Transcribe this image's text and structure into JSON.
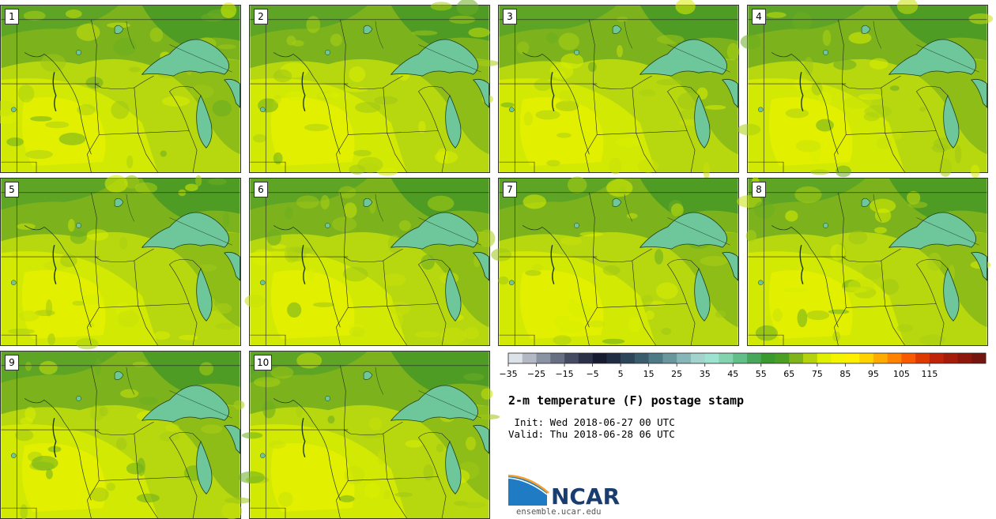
{
  "panels": [
    {
      "label": "1"
    },
    {
      "label": "2"
    },
    {
      "label": "3"
    },
    {
      "label": "4"
    },
    {
      "label": "5"
    },
    {
      "label": "6"
    },
    {
      "label": "7"
    },
    {
      "label": "8"
    },
    {
      "label": "9"
    },
    {
      "label": "10"
    }
  ],
  "title": "2-m temperature (F) postage stamp",
  "init": " Init: Wed 2018-06-27 00 UTC",
  "valid": "Valid: Thu 2018-06-28 06 UTC",
  "colorbar": {
    "ticks": [
      "−35",
      "−25",
      "−15",
      "−5",
      "5",
      "15",
      "25",
      "35",
      "45",
      "55",
      "65",
      "75",
      "85",
      "95",
      "105",
      "115"
    ],
    "colors": [
      "#dde2e8",
      "#b2b9c4",
      "#8a93a3",
      "#676f82",
      "#454c62",
      "#2b3148",
      "#161b30",
      "#1f2c42",
      "#2c4559",
      "#3a5d6e",
      "#4e7a85",
      "#68979e",
      "#86b6b7",
      "#a2d4cd",
      "#9ee2d2",
      "#82d3ae",
      "#62bf88",
      "#48a75a",
      "#3b9a2f",
      "#4a9f24",
      "#7fb41c",
      "#b4d20e",
      "#dff000",
      "#f3f500",
      "#ffef00",
      "#ffd200",
      "#ffab00",
      "#ff8200",
      "#f85a00",
      "#de3a00",
      "#c02408",
      "#a51c0a",
      "#8e170c",
      "#74160f"
    ]
  },
  "logo": {
    "text": "NCAR",
    "site": "ensemble.ucar.edu"
  }
}
